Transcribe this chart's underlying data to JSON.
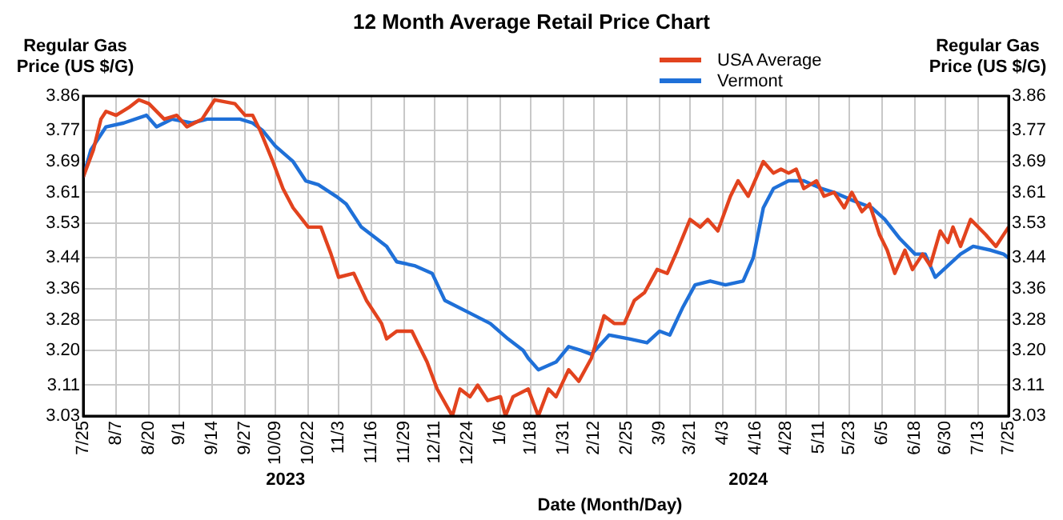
{
  "chart_data": {
    "type": "line",
    "title": "12 Month Average Retail Price Chart",
    "xlabel": "Date (Month/Day)",
    "ylabel": "Regular Gas Price (US $/G)",
    "y2label": "Regular Gas Price (US $/G)",
    "annotations": [
      "2023",
      "2024"
    ],
    "xlim": [
      "2023-07-25",
      "2024-07-25"
    ],
    "xticks": [
      {
        "value": "2023-07-25",
        "label": "7/25"
      },
      {
        "value": "2023-08-07",
        "label": "8/7"
      },
      {
        "value": "2023-08-20",
        "label": "8/20"
      },
      {
        "value": "2023-09-01",
        "label": "9/1"
      },
      {
        "value": "2023-09-14",
        "label": "9/14"
      },
      {
        "value": "2023-09-27",
        "label": "9/27"
      },
      {
        "value": "2023-10-09",
        "label": "10/09"
      },
      {
        "value": "2023-10-22",
        "label": "10/22"
      },
      {
        "value": "2023-11-03",
        "label": "11/3"
      },
      {
        "value": "2023-11-16",
        "label": "11/16"
      },
      {
        "value": "2023-11-29",
        "label": "11/29"
      },
      {
        "value": "2023-12-11",
        "label": "12/11"
      },
      {
        "value": "2023-12-24",
        "label": "12/24"
      },
      {
        "value": "2024-01-06",
        "label": "1/6"
      },
      {
        "value": "2024-01-18",
        "label": "1/18"
      },
      {
        "value": "2024-01-31",
        "label": "1/31"
      },
      {
        "value": "2024-02-12",
        "label": "2/12"
      },
      {
        "value": "2024-02-25",
        "label": "2/25"
      },
      {
        "value": "2024-03-09",
        "label": "3/9"
      },
      {
        "value": "2024-03-21",
        "label": "3/21"
      },
      {
        "value": "2024-04-03",
        "label": "4/3"
      },
      {
        "value": "2024-04-16",
        "label": "4/16"
      },
      {
        "value": "2024-04-28",
        "label": "4/28"
      },
      {
        "value": "2024-05-11",
        "label": "5/11"
      },
      {
        "value": "2024-05-23",
        "label": "5/23"
      },
      {
        "value": "2024-06-05",
        "label": "6/5"
      },
      {
        "value": "2024-06-18",
        "label": "6/18"
      },
      {
        "value": "2024-06-30",
        "label": "6/30"
      },
      {
        "value": "2024-07-13",
        "label": "7/13"
      },
      {
        "value": "2024-07-25",
        "label": "7/25"
      }
    ],
    "ylim": [
      3.03,
      3.86
    ],
    "yticks": [
      3.03,
      3.11,
      {
        "value": 3.2,
        "label": "3.20"
      },
      3.28,
      3.36,
      3.44,
      3.53,
      3.61,
      3.69,
      3.77,
      3.86
    ],
    "y2lim": [
      3.03,
      3.86
    ],
    "y2ticks": [
      3.03,
      3.11,
      {
        "value": 3.2,
        "label": "3.20"
      },
      3.28,
      3.36,
      3.44,
      3.53,
      3.61,
      3.69,
      3.77,
      3.86
    ],
    "grid": true,
    "legend": "top right",
    "series": [
      {
        "name": "USA Average",
        "color": "#e2431e",
        "x": [
          "2023-07-25",
          "2023-07-29",
          "2023-08-01",
          "2023-08-03",
          "2023-08-07",
          "2023-08-12",
          "2023-08-16",
          "2023-08-20",
          "2023-08-26",
          "2023-08-31",
          "2023-09-04",
          "2023-09-10",
          "2023-09-15",
          "2023-09-23",
          "2023-09-27",
          "2023-09-30",
          "2023-10-03",
          "2023-10-08",
          "2023-10-12",
          "2023-10-16",
          "2023-10-22",
          "2023-10-27",
          "2023-10-31",
          "2023-11-03",
          "2023-11-09",
          "2023-11-14",
          "2023-11-20",
          "2023-11-22",
          "2023-11-26",
          "2023-12-02",
          "2023-12-08",
          "2023-12-12",
          "2023-12-18",
          "2023-12-21",
          "2023-12-25",
          "2023-12-28",
          "2024-01-01",
          "2024-01-06",
          "2024-01-08",
          "2024-01-11",
          "2024-01-17",
          "2024-01-21",
          "2024-01-25",
          "2024-01-28",
          "2024-02-02",
          "2024-02-06",
          "2024-02-11",
          "2024-02-16",
          "2024-02-20",
          "2024-02-24",
          "2024-02-28",
          "2024-03-03",
          "2024-03-08",
          "2024-03-12",
          "2024-03-16",
          "2024-03-21",
          "2024-03-25",
          "2024-03-28",
          "2024-04-01",
          "2024-04-06",
          "2024-04-09",
          "2024-04-13",
          "2024-04-19",
          "2024-04-23",
          "2024-04-26",
          "2024-04-29",
          "2024-05-02",
          "2024-05-05",
          "2024-05-10",
          "2024-05-13",
          "2024-05-17",
          "2024-05-21",
          "2024-05-24",
          "2024-05-28",
          "2024-05-31",
          "2024-06-04",
          "2024-06-07",
          "2024-06-10",
          "2024-06-14",
          "2024-06-17",
          "2024-06-21",
          "2024-06-24",
          "2024-06-28",
          "2024-07-01",
          "2024-07-03",
          "2024-07-06",
          "2024-07-10",
          "2024-07-16",
          "2024-07-20",
          "2024-07-25"
        ],
        "values": [
          3.65,
          3.72,
          3.8,
          3.82,
          3.81,
          3.83,
          3.85,
          3.84,
          3.8,
          3.81,
          3.78,
          3.8,
          3.85,
          3.84,
          3.81,
          3.81,
          3.77,
          3.69,
          3.62,
          3.57,
          3.52,
          3.52,
          3.45,
          3.39,
          3.4,
          3.33,
          3.27,
          3.23,
          3.25,
          3.25,
          3.17,
          3.1,
          3.03,
          3.1,
          3.08,
          3.11,
          3.07,
          3.08,
          3.03,
          3.08,
          3.1,
          3.03,
          3.1,
          3.08,
          3.15,
          3.12,
          3.18,
          3.29,
          3.27,
          3.27,
          3.33,
          3.35,
          3.41,
          3.4,
          3.46,
          3.54,
          3.52,
          3.54,
          3.51,
          3.6,
          3.64,
          3.6,
          3.69,
          3.66,
          3.67,
          3.66,
          3.67,
          3.62,
          3.64,
          3.6,
          3.61,
          3.57,
          3.61,
          3.56,
          3.58,
          3.5,
          3.46,
          3.4,
          3.46,
          3.41,
          3.45,
          3.42,
          3.51,
          3.48,
          3.52,
          3.47,
          3.54,
          3.5,
          3.47,
          3.52
        ]
      },
      {
        "name": "Vermont",
        "color": "#1f70d8",
        "x": [
          "2023-07-25",
          "2023-07-28",
          "2023-08-03",
          "2023-08-10",
          "2023-08-19",
          "2023-08-23",
          "2023-08-29",
          "2023-09-06",
          "2023-09-12",
          "2023-09-19",
          "2023-09-25",
          "2023-09-30",
          "2023-10-04",
          "2023-10-09",
          "2023-10-16",
          "2023-10-21",
          "2023-10-26",
          "2023-11-02",
          "2023-11-06",
          "2023-11-12",
          "2023-11-18",
          "2023-11-22",
          "2023-11-26",
          "2023-12-03",
          "2023-12-10",
          "2023-12-15",
          "2023-12-24",
          "2024-01-02",
          "2024-01-09",
          "2024-01-15",
          "2024-01-17",
          "2024-01-21",
          "2024-01-28",
          "2024-02-02",
          "2024-02-07",
          "2024-02-11",
          "2024-02-18",
          "2024-02-26",
          "2024-03-04",
          "2024-03-09",
          "2024-03-13",
          "2024-03-18",
          "2024-03-23",
          "2024-03-29",
          "2024-04-04",
          "2024-04-11",
          "2024-04-15",
          "2024-04-19",
          "2024-04-23",
          "2024-04-29",
          "2024-05-05",
          "2024-05-12",
          "2024-05-17",
          "2024-05-24",
          "2024-06-01",
          "2024-06-06",
          "2024-06-12",
          "2024-06-18",
          "2024-06-22",
          "2024-06-26",
          "2024-07-01",
          "2024-07-06",
          "2024-07-11",
          "2024-07-18",
          "2024-07-23",
          "2024-07-25"
        ],
        "values": [
          3.65,
          3.72,
          3.78,
          3.79,
          3.81,
          3.78,
          3.8,
          3.79,
          3.8,
          3.8,
          3.8,
          3.79,
          3.77,
          3.73,
          3.69,
          3.64,
          3.63,
          3.6,
          3.58,
          3.52,
          3.49,
          3.47,
          3.43,
          3.42,
          3.4,
          3.33,
          3.3,
          3.27,
          3.23,
          3.2,
          3.18,
          3.15,
          3.17,
          3.21,
          3.2,
          3.19,
          3.24,
          3.23,
          3.22,
          3.25,
          3.24,
          3.31,
          3.37,
          3.38,
          3.37,
          3.38,
          3.44,
          3.57,
          3.62,
          3.64,
          3.64,
          3.62,
          3.61,
          3.59,
          3.57,
          3.54,
          3.49,
          3.45,
          3.45,
          3.39,
          3.42,
          3.45,
          3.47,
          3.46,
          3.45,
          3.44
        ]
      }
    ]
  }
}
